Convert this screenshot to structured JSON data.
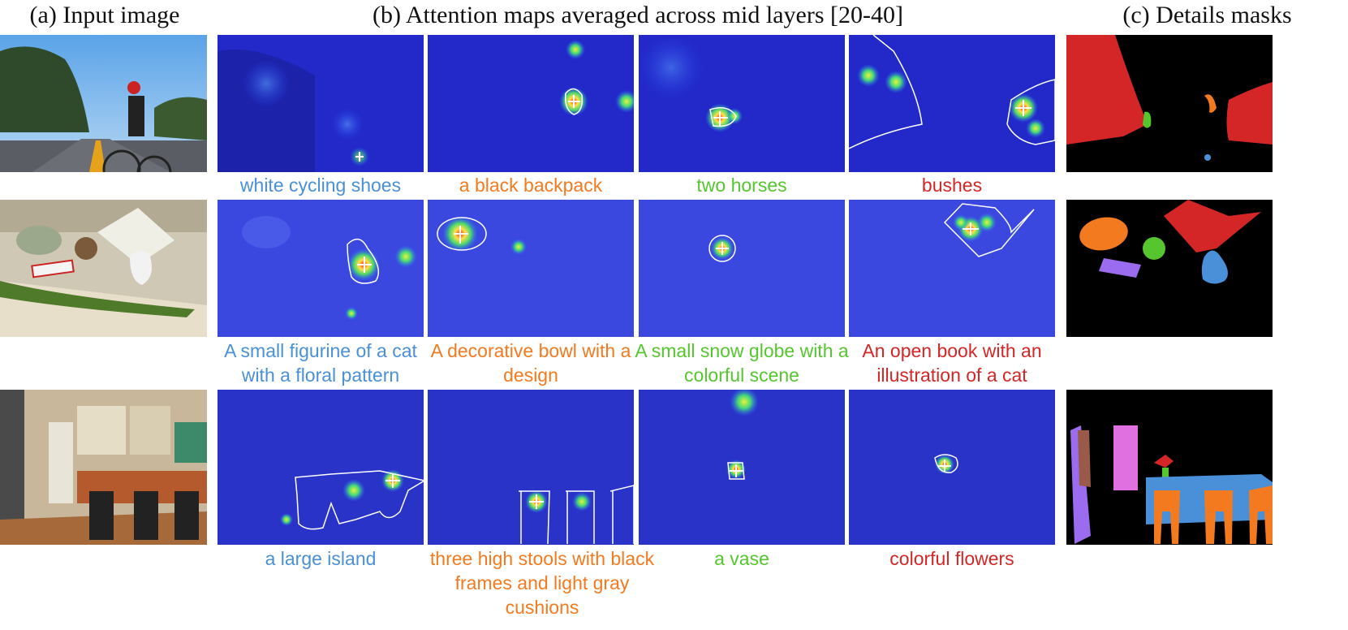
{
  "headers": {
    "a": "(a) Input image",
    "b": "(b) Attention maps averaged across mid layers [20-40]",
    "c": "(c) Details masks"
  },
  "colors": {
    "blue": "#4a90d9",
    "orange": "#f47a1f",
    "green": "#56c62f",
    "red": "#d42626"
  },
  "rows": [
    {
      "captions": [
        {
          "text": "white cycling shoes",
          "color": "blue"
        },
        {
          "text": "a black backpack",
          "color": "orange"
        },
        {
          "text": "two horses",
          "color": "green"
        },
        {
          "text": "bushes",
          "color": "red"
        }
      ]
    },
    {
      "captions": [
        {
          "text": "A small figurine of a cat with a floral pattern",
          "color": "blue"
        },
        {
          "text": "A decorative bowl with a design",
          "color": "orange"
        },
        {
          "text": "A small snow globe with a colorful scene",
          "color": "green"
        },
        {
          "text": "An open book with an illustration of a cat",
          "color": "red"
        }
      ]
    },
    {
      "captions": [
        {
          "text": "a large island",
          "color": "blue"
        },
        {
          "text": "three high stools with black frames and light gray cushions",
          "color": "orange"
        },
        {
          "text": "a vase",
          "color": "green"
        },
        {
          "text": "colorful flowers",
          "color": "red"
        }
      ]
    }
  ]
}
